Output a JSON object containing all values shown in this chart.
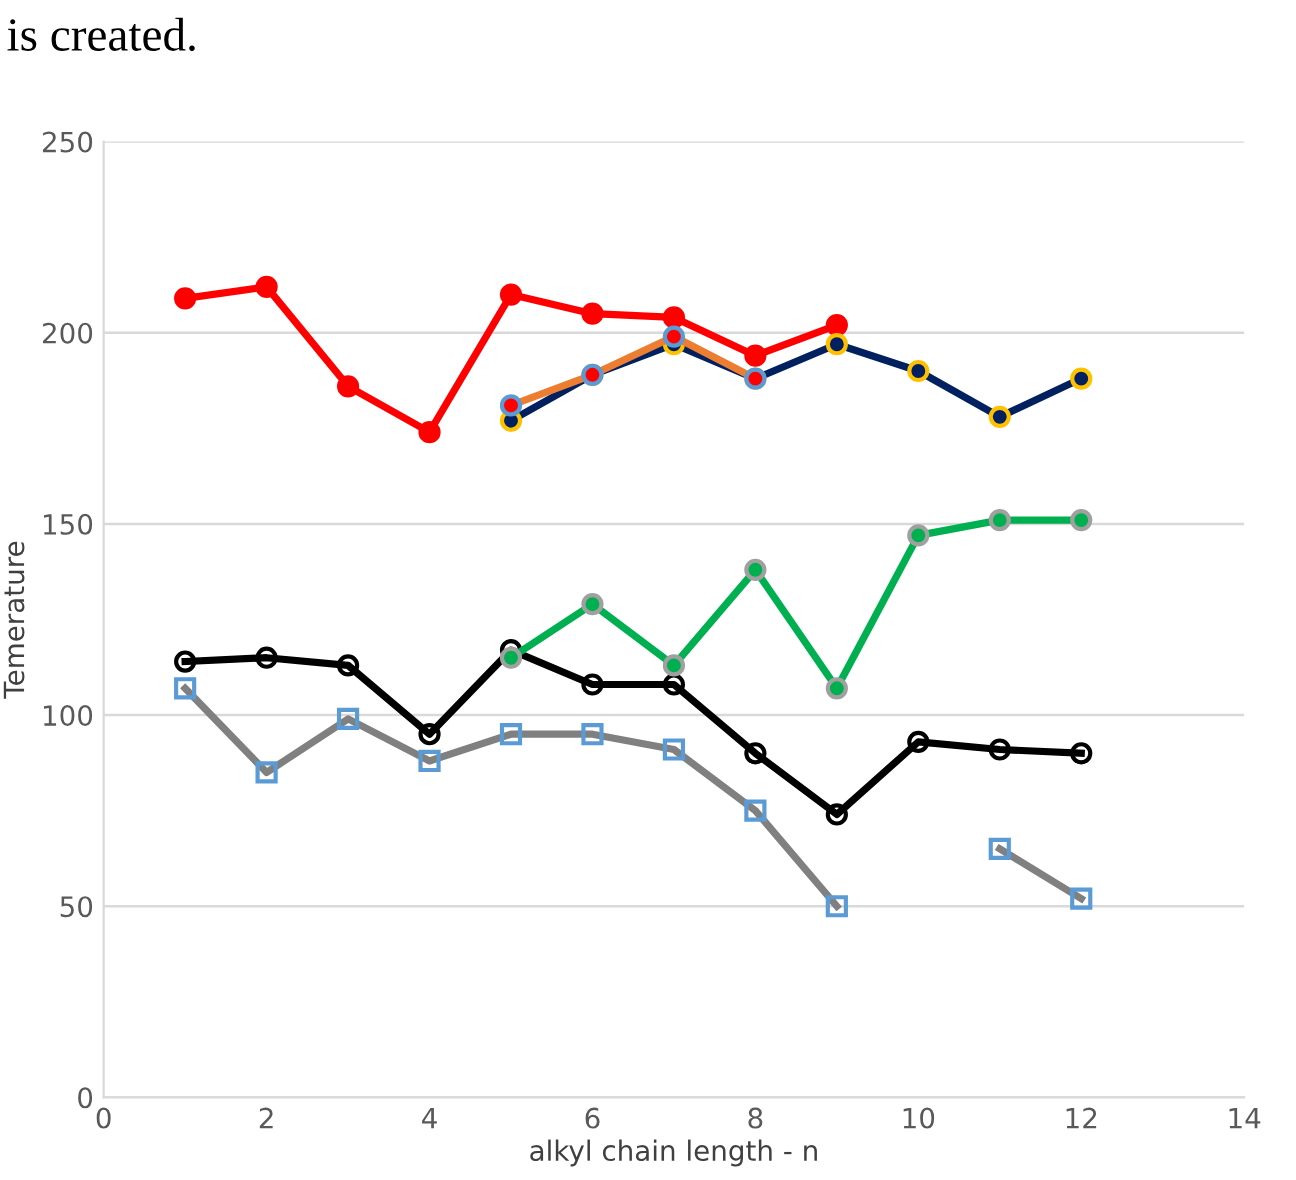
{
  "chart_data": {
    "type": "line",
    "xlabel": "alkyl chain length - n",
    "ylabel": "Temerature",
    "annotations": [
      "is created."
    ],
    "x": [
      1,
      2,
      3,
      4,
      5,
      6,
      7,
      8,
      9,
      10,
      11,
      12
    ],
    "xlim": [
      0,
      14
    ],
    "xticks": [
      0,
      2,
      4,
      6,
      8,
      10,
      12,
      14
    ],
    "ylim": [
      0,
      250
    ],
    "yticks": [
      0,
      50,
      100,
      150,
      200,
      250
    ],
    "grid": "y",
    "legend": false,
    "series": [
      {
        "color": "#ff0000",
        "marker": "circle",
        "values": [
          209,
          212,
          186,
          174,
          210,
          205,
          204,
          194,
          202,
          null,
          null,
          null
        ]
      },
      {
        "color": "#002060",
        "marker": "circle",
        "values": [
          null,
          null,
          null,
          null,
          177,
          189,
          197,
          188,
          197,
          190,
          178,
          188
        ]
      },
      {
        "color": "#ed7d31",
        "marker": "circle",
        "values": [
          null,
          null,
          null,
          null,
          181,
          189,
          199,
          188,
          null,
          null,
          null,
          null
        ]
      },
      {
        "color": "#000000",
        "marker": "circle",
        "values": [
          114,
          115,
          113,
          95,
          117,
          108,
          108,
          90,
          74,
          93,
          91,
          90
        ]
      },
      {
        "color": "#00b050",
        "marker": "circle",
        "values": [
          null,
          null,
          null,
          null,
          115,
          129,
          113,
          138,
          107,
          147,
          151,
          151
        ]
      },
      {
        "color": "#808080",
        "marker": "square",
        "values": [
          107,
          85,
          99,
          88,
          95,
          95,
          91,
          75,
          50,
          null,
          65,
          52
        ]
      }
    ]
  }
}
